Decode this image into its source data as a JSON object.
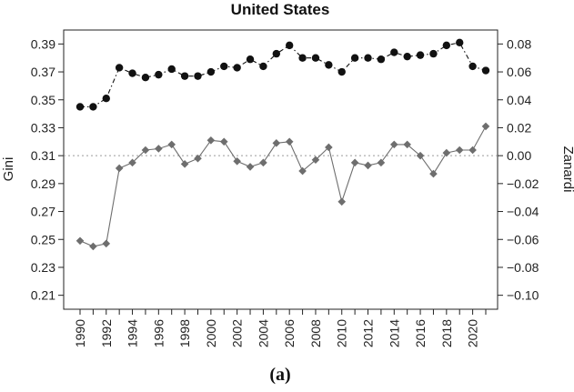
{
  "chart_data": {
    "type": "line",
    "title": "United States",
    "caption": "(a)",
    "xlabel": "",
    "ylabel_left": "Gini",
    "ylabel_right": "Zanardi",
    "x": [
      1990,
      1991,
      1992,
      1993,
      1994,
      1995,
      1996,
      1997,
      1998,
      1999,
      2000,
      2001,
      2002,
      2003,
      2004,
      2005,
      2006,
      2007,
      2008,
      2009,
      2010,
      2011,
      2012,
      2013,
      2014,
      2015,
      2016,
      2017,
      2018,
      2019,
      2020,
      2021
    ],
    "x_ticks": [
      "1990",
      "1992",
      "1994",
      "1996",
      "1998",
      "2000",
      "2002",
      "2004",
      "2006",
      "2008",
      "2010",
      "2012",
      "2014",
      "2016",
      "2018",
      "2020"
    ],
    "y_left_ticks": [
      "0.21",
      "0.23",
      "0.25",
      "0.27",
      "0.29",
      "0.31",
      "0.33",
      "0.35",
      "0.37",
      "0.39"
    ],
    "y_right_ticks": [
      "−0.10",
      "−0.08",
      "−0.06",
      "−0.04",
      "−0.02",
      "0.00",
      "0.02",
      "0.04",
      "0.06",
      "0.08"
    ],
    "ylim_left": [
      0.2,
      0.4
    ],
    "ylim_right": [
      -0.11,
      0.09
    ],
    "reference_line_right": 0.0,
    "series": [
      {
        "axis": "left",
        "marker": "circle",
        "line_style": "dash-dot",
        "color": "#111111",
        "values": [
          0.345,
          0.345,
          0.351,
          0.373,
          0.369,
          0.366,
          0.368,
          0.372,
          0.367,
          0.367,
          0.37,
          0.374,
          0.373,
          0.379,
          0.374,
          0.383,
          0.389,
          0.38,
          0.38,
          0.375,
          0.37,
          0.38,
          0.38,
          0.379,
          0.384,
          0.381,
          0.382,
          0.383,
          0.389,
          0.391,
          0.374,
          0.371
        ]
      },
      {
        "axis": "right",
        "marker": "diamond",
        "line_style": "solid",
        "color": "#6e6e6e",
        "values": [
          -0.061,
          -0.065,
          -0.063,
          -0.009,
          -0.005,
          0.004,
          0.005,
          0.008,
          -0.006,
          -0.002,
          0.011,
          0.01,
          -0.004,
          -0.008,
          -0.005,
          0.009,
          0.01,
          -0.011,
          -0.003,
          0.006,
          -0.033,
          -0.005,
          -0.007,
          -0.005,
          0.008,
          0.008,
          0.0,
          -0.013,
          0.002,
          0.004,
          0.004,
          0.021
        ]
      }
    ],
    "grid": false,
    "legend": "none"
  }
}
